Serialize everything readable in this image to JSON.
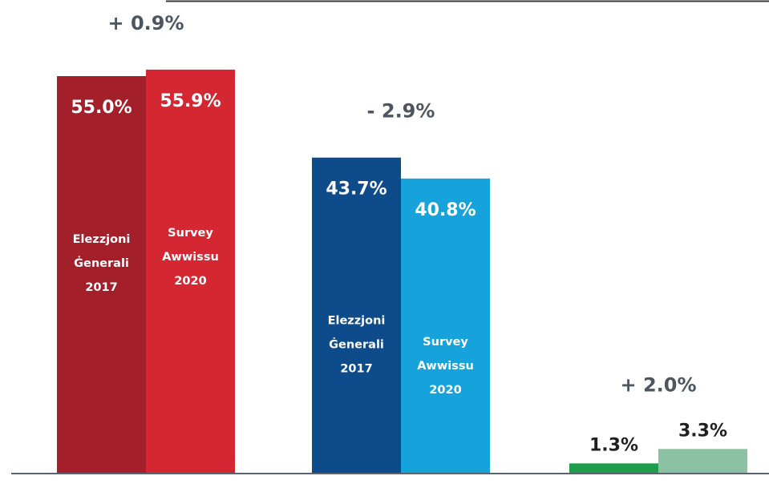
{
  "chart_data": {
    "type": "bar",
    "ylim": [
      0,
      60
    ],
    "groups": [
      {
        "delta_label": "+ 0.9%",
        "bars": [
          {
            "value": 55.0,
            "value_label": "55.0%",
            "label_lines": [
              "Elezzjoni",
              "Ġenerali",
              "2017"
            ],
            "color": "#a31f29"
          },
          {
            "value": 55.9,
            "value_label": "55.9%",
            "label_lines": [
              "Survey",
              "Awwissu",
              "2020"
            ],
            "color": "#d42732"
          }
        ]
      },
      {
        "delta_label": "- 2.9%",
        "bars": [
          {
            "value": 43.7,
            "value_label": "43.7%",
            "label_lines": [
              "Elezzjoni",
              "Ġenerali",
              "2017"
            ],
            "color": "#0d4b8a"
          },
          {
            "value": 40.8,
            "value_label": "40.8%",
            "label_lines": [
              "Survey",
              "Awwissu",
              "2020"
            ],
            "color": "#16a3dc"
          }
        ]
      },
      {
        "delta_label": "+ 2.0%",
        "bars": [
          {
            "value": 1.3,
            "value_label": "1.3%",
            "label_lines": [],
            "color": "#1e9e4d"
          },
          {
            "value": 3.3,
            "value_label": "3.3%",
            "label_lines": [],
            "color": "#8cc2a4"
          }
        ]
      }
    ]
  },
  "colors": {
    "axis": "#5a6470",
    "delta_text": "#4d5560",
    "top_rule": "#3b3b3b"
  }
}
